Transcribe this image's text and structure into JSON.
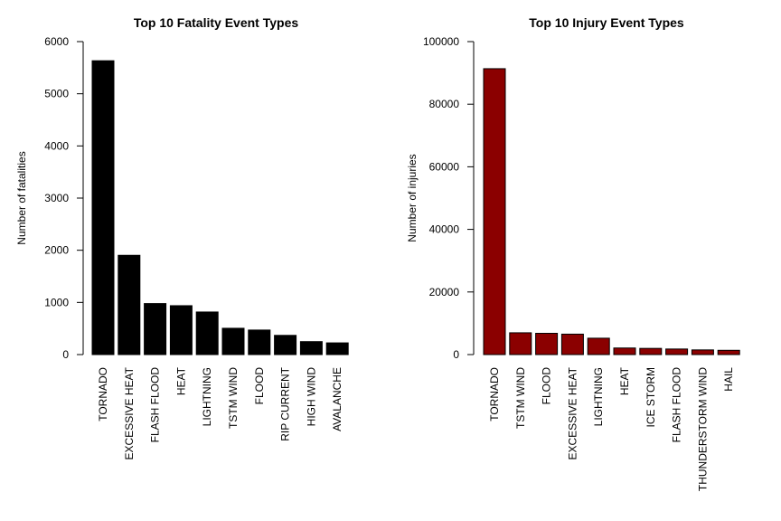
{
  "chart_data": [
    {
      "type": "bar",
      "title": "Top 10 Fatality Event Types",
      "xlabel": "",
      "ylabel": "Number of fatalities",
      "ylim": [
        0,
        6000
      ],
      "yticks": [
        "0",
        "1000",
        "2000",
        "3000",
        "4000",
        "5000",
        "6000"
      ],
      "categories": [
        "TORNADO",
        "EXCESSIVE HEAT",
        "FLASH FLOOD",
        "HEAT",
        "LIGHTNING",
        "TSTM WIND",
        "FLOOD",
        "RIP CURRENT",
        "HIGH WIND",
        "AVALANCHE"
      ],
      "values": [
        5633,
        1903,
        978,
        937,
        816,
        504,
        470,
        368,
        248,
        224
      ],
      "color": "#000000",
      "grid": false,
      "legend": "none"
    },
    {
      "type": "bar",
      "title": "Top 10 Injury Event Types",
      "xlabel": "",
      "ylabel": "Number of injuries",
      "ylim": [
        0,
        100000
      ],
      "yticks": [
        "0",
        "20000",
        "40000",
        "60000",
        "80000",
        "100000"
      ],
      "categories": [
        "TORNADO",
        "TSTM WIND",
        "FLOOD",
        "EXCESSIVE HEAT",
        "LIGHTNING",
        "HEAT",
        "ICE STORM",
        "FLASH FLOOD",
        "THUNDERSTORM WIND",
        "HAIL"
      ],
      "values": [
        91346,
        6957,
        6789,
        6525,
        5230,
        2100,
        1975,
        1777,
        1488,
        1361
      ],
      "color": "#8b0000",
      "grid": false,
      "legend": "none"
    }
  ]
}
